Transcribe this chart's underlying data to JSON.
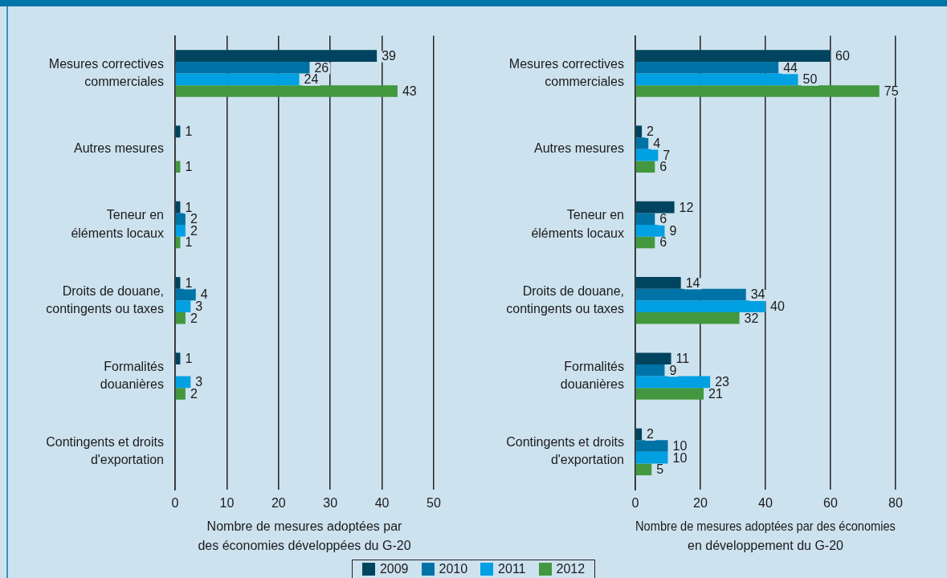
{
  "chart_data": [
    {
      "type": "bar",
      "orientation": "horizontal",
      "categories": [
        "Mesures correctives\ncommerciales",
        "Autres mesures",
        "Teneur en\néléments locaux",
        "Droits de douane,\ncontingents ou taxes",
        "Formalités\ndouanières",
        "Contingents et droits\nd'exportation"
      ],
      "series": [
        {
          "name": "2009",
          "color": "#00445f",
          "values": [
            39,
            1,
            1,
            1,
            1,
            null
          ]
        },
        {
          "name": "2010",
          "color": "#0073a6",
          "values": [
            26,
            null,
            2,
            4,
            null,
            null
          ]
        },
        {
          "name": "2011",
          "color": "#00a0e3",
          "values": [
            24,
            null,
            2,
            3,
            3,
            null
          ]
        },
        {
          "name": "2012",
          "color": "#43983f",
          "values": [
            43,
            1,
            1,
            2,
            2,
            null
          ]
        }
      ],
      "xlim": [
        0,
        50
      ],
      "xticks": [
        0,
        10,
        20,
        30,
        40,
        50
      ],
      "xlabel": "Nombre de mesures adoptées par\ndes économies développées du G-20",
      "data_labels": true,
      "grid": "x",
      "legend": "bottom"
    },
    {
      "type": "bar",
      "orientation": "horizontal",
      "categories": [
        "Mesures correctives\ncommerciales",
        "Autres mesures",
        "Teneur en\néléments locaux",
        "Droits de douane,\ncontingents ou taxes",
        "Formalités\ndouanières",
        "Contingents et droits\nd'exportation"
      ],
      "series": [
        {
          "name": "2009",
          "color": "#00445f",
          "values": [
            60,
            2,
            12,
            14,
            11,
            2
          ]
        },
        {
          "name": "2010",
          "color": "#0073a6",
          "values": [
            44,
            4,
            6,
            34,
            9,
            10
          ]
        },
        {
          "name": "2011",
          "color": "#00a0e3",
          "values": [
            50,
            7,
            9,
            40,
            23,
            10
          ]
        },
        {
          "name": "2012",
          "color": "#43983f",
          "values": [
            75,
            6,
            6,
            32,
            21,
            5
          ]
        }
      ],
      "xlim": [
        0,
        80
      ],
      "xticks": [
        0,
        20,
        40,
        60,
        80
      ],
      "xlabel": "Nombre de mesures adoptées par des économies\nen développement du G-20",
      "data_labels": true,
      "grid": "x",
      "legend": "bottom"
    }
  ]
}
